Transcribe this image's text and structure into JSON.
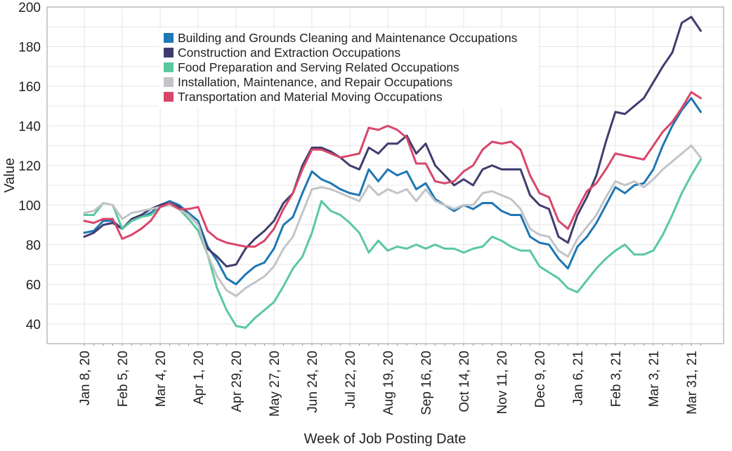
{
  "chart_data": {
    "type": "line",
    "title": "",
    "xlabel": "Week of Job Posting Date",
    "ylabel": "Value",
    "ylim": [
      30,
      200
    ],
    "yticks": [
      40,
      60,
      80,
      100,
      120,
      140,
      160,
      180,
      200
    ],
    "grid": true,
    "legend_position": "top-center",
    "x_start": "Jan 8, 20",
    "x_step": "1 week",
    "x_tick_labels": [
      "Jan 8, 20",
      "Feb 5, 20",
      "Mar 4, 20",
      "Apr 1, 20",
      "Apr 29, 20",
      "May 27, 20",
      "Jun 24, 20",
      "Jul 22, 20",
      "Aug 19, 20",
      "Sep 16, 20",
      "Oct 14, 20",
      "Nov 11, 20",
      "Dec 9, 20",
      "Jan 6, 21",
      "Feb 3, 21",
      "Mar 3, 21",
      "Mar 31, 21"
    ],
    "series": [
      {
        "name": "Building and Grounds Cleaning and Maintenance Occupations",
        "color": "#1f77b4",
        "values": [
          86,
          87,
          92,
          92,
          88,
          92,
          94,
          96,
          100,
          102,
          100,
          96,
          92,
          79,
          72,
          63,
          60,
          65,
          69,
          71,
          78,
          90,
          94,
          106,
          117,
          113,
          111,
          108,
          106,
          105,
          118,
          112,
          118,
          115,
          117,
          108,
          111,
          103,
          100,
          97,
          100,
          98,
          101,
          101,
          97,
          95,
          95,
          84,
          81,
          80,
          73,
          68,
          79,
          84,
          91,
          100,
          109,
          106,
          110,
          111,
          118,
          130,
          140,
          148,
          154,
          147
        ]
      },
      {
        "name": "Construction and Extraction Occupations",
        "color": "#403d6e",
        "values": [
          84,
          86,
          90,
          91,
          88,
          93,
          95,
          98,
          100,
          101,
          99,
          95,
          90,
          78,
          74,
          69,
          70,
          78,
          83,
          87,
          92,
          101,
          106,
          120,
          129,
          129,
          127,
          124,
          120,
          118,
          129,
          126,
          131,
          131,
          135,
          126,
          131,
          120,
          115,
          110,
          113,
          110,
          118,
          120,
          118,
          118,
          118,
          105,
          100,
          98,
          84,
          81,
          95,
          104,
          115,
          132,
          147,
          146,
          150,
          154,
          162,
          170,
          177,
          192,
          195,
          188
        ]
      },
      {
        "name": "Food Preparation and Serving Related Occupations",
        "color": "#5bc8a0",
        "values": [
          95,
          95,
          101,
          100,
          88,
          92,
          94,
          95,
          99,
          100,
          98,
          93,
          87,
          75,
          58,
          47,
          39,
          38,
          43,
          47,
          51,
          59,
          68,
          74,
          86,
          102,
          97,
          95,
          91,
          86,
          76,
          82,
          77,
          79,
          78,
          80,
          78,
          80,
          78,
          78,
          76,
          78,
          79,
          84,
          82,
          79,
          77,
          77,
          69,
          66,
          63,
          58,
          56,
          62,
          68,
          73,
          77,
          80,
          75,
          75,
          77,
          85,
          95,
          106,
          115,
          123
        ]
      },
      {
        "name": "Installation, Maintenance, and Repair Occupations",
        "color": "#c2c4c8",
        "values": [
          96,
          97,
          101,
          100,
          93,
          96,
          97,
          98,
          99,
          100,
          98,
          95,
          90,
          75,
          64,
          57,
          54,
          58,
          61,
          64,
          69,
          78,
          84,
          96,
          108,
          109,
          108,
          106,
          104,
          102,
          110,
          105,
          108,
          106,
          108,
          102,
          108,
          102,
          100,
          98,
          100,
          100,
          106,
          107,
          105,
          103,
          98,
          88,
          85,
          84,
          77,
          74,
          83,
          89,
          95,
          104,
          112,
          110,
          112,
          109,
          113,
          118,
          122,
          126,
          130,
          124
        ]
      },
      {
        "name": "Transportation and Material Moving Occupations",
        "color": "#d9466b",
        "values": [
          92,
          91,
          93,
          93,
          83,
          85,
          88,
          92,
          99,
          101,
          98,
          98,
          99,
          87,
          83,
          81,
          80,
          79,
          79,
          82,
          88,
          98,
          106,
          118,
          128,
          128,
          126,
          124,
          125,
          126,
          139,
          138,
          140,
          138,
          134,
          121,
          121,
          112,
          111,
          112,
          117,
          120,
          128,
          132,
          131,
          132,
          128,
          115,
          106,
          104,
          92,
          88,
          98,
          107,
          111,
          118,
          126,
          125,
          124,
          123,
          130,
          137,
          142,
          149,
          157,
          154
        ]
      }
    ]
  }
}
